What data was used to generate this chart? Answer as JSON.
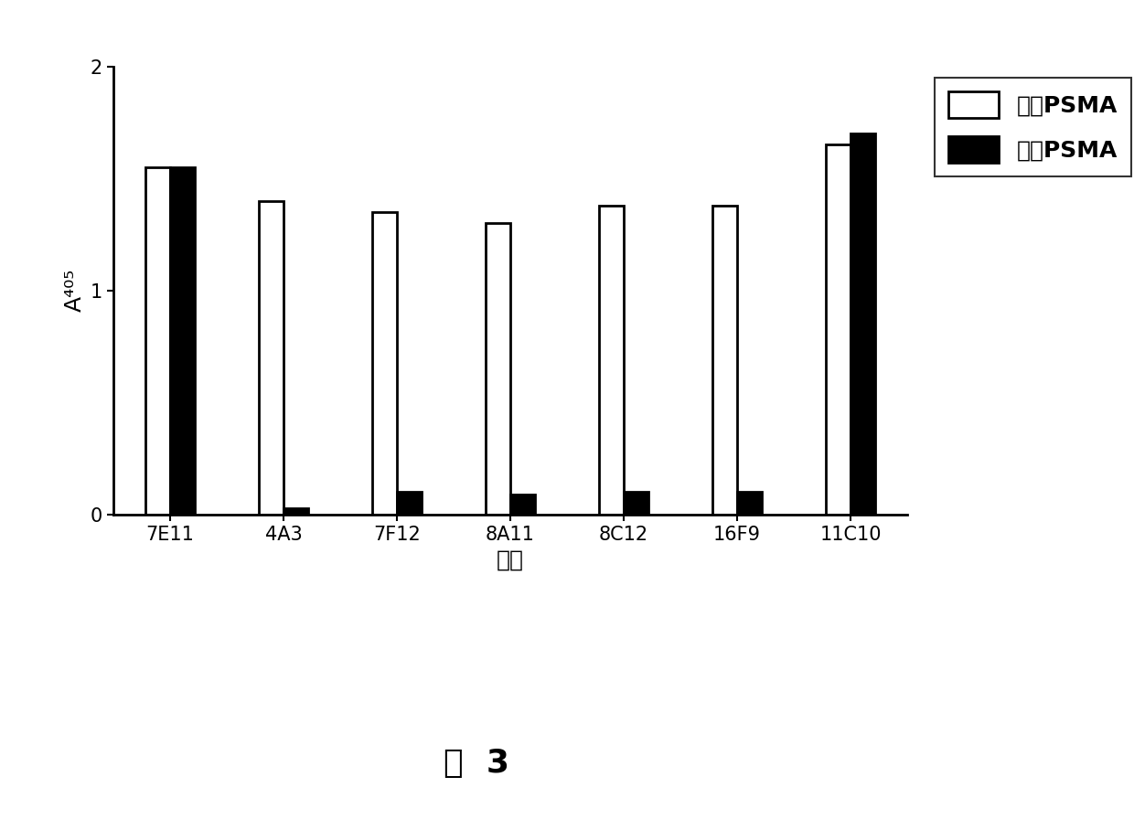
{
  "categories": [
    "7E11",
    "4A3",
    "7F12",
    "8A11",
    "8C12",
    "16F9",
    "11C10"
  ],
  "natural_values": [
    1.55,
    1.4,
    1.35,
    1.3,
    1.38,
    1.38,
    1.65
  ],
  "denatured_values": [
    1.55,
    0.03,
    0.1,
    0.09,
    0.1,
    0.1,
    1.7
  ],
  "xlabel": "抗体",
  "ylabel": "A⁴⁰⁵",
  "ylim": [
    0,
    2.0
  ],
  "yticks": [
    0,
    1,
    2
  ],
  "legend_label_natural": "天然PSMA",
  "legend_label_denatured": "变性PSMA",
  "caption": "图  3",
  "bar_width": 0.22,
  "natural_color": "white",
  "denatured_color": "black",
  "edge_color": "black",
  "background_color": "white",
  "label_fontsize": 18,
  "tick_fontsize": 15,
  "legend_fontsize": 18,
  "caption_fontsize": 26,
  "bar_linewidth": 2.0
}
